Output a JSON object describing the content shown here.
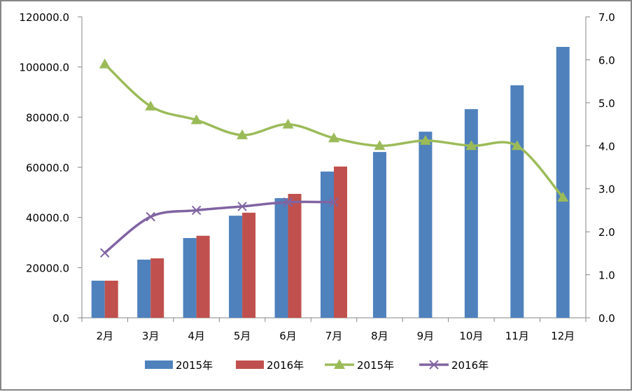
{
  "chart_data": {
    "type": "bar+line",
    "categories": [
      "2月",
      "3月",
      "4月",
      "5月",
      "6月",
      "7月",
      "8月",
      "9月",
      "10月",
      "11月",
      "12月"
    ],
    "left_axis": {
      "min": 0,
      "max": 120000,
      "step": 20000,
      "ticks": [
        "0.0",
        "20000.0",
        "40000.0",
        "60000.0",
        "80000.0",
        "100000.0",
        "120000.0"
      ]
    },
    "right_axis": {
      "min": 0,
      "max": 7,
      "step": 1,
      "ticks": [
        "0.0",
        "1.0",
        "2.0",
        "3.0",
        "4.0",
        "5.0",
        "6.0",
        "7.0"
      ]
    },
    "bar_series": [
      {
        "name": "2015年",
        "color": "#4F81BD",
        "values": [
          14800,
          23200,
          31800,
          40700,
          47700,
          58300,
          66100,
          74200,
          83200,
          92700,
          108000
        ]
      },
      {
        "name": "2016年",
        "color": "#C0504D",
        "values": [
          14800,
          23700,
          32700,
          41900,
          49400,
          60300,
          null,
          null,
          null,
          null,
          null
        ]
      }
    ],
    "line_series": [
      {
        "name": "2015年",
        "color": "#9BBB59",
        "marker": "triangle",
        "axis": "right",
        "values": [
          5.9,
          4.92,
          4.6,
          4.25,
          4.5,
          4.18,
          4.0,
          4.12,
          4.0,
          4.0,
          2.8
        ]
      },
      {
        "name": "2016年",
        "color": "#8064A2",
        "marker": "x",
        "axis": "right",
        "values": [
          1.51,
          2.35,
          2.5,
          2.59,
          2.69,
          2.69,
          null,
          null,
          null,
          null,
          null
        ]
      }
    ],
    "grid": false,
    "legend_position": "bottom"
  }
}
